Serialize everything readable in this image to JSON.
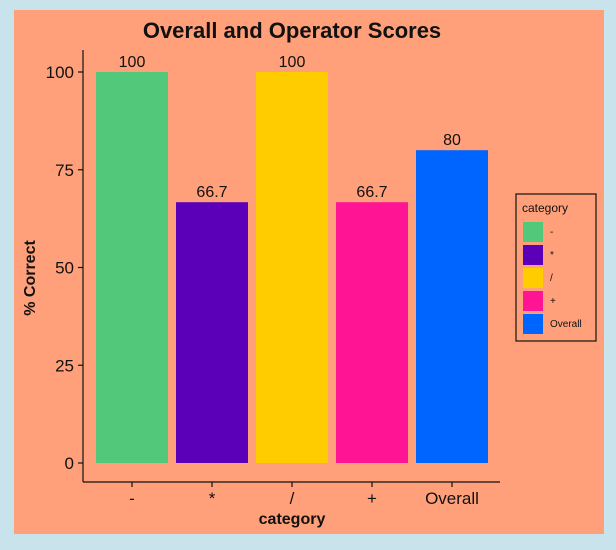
{
  "chart_data": {
    "type": "bar",
    "title": "Overall and Operator Scores",
    "xlabel": "category",
    "ylabel": "% Correct",
    "categories": [
      "-",
      "*",
      "/",
      "+",
      "Overall"
    ],
    "values": [
      100,
      66.7,
      100,
      66.7,
      80
    ],
    "data_labels": [
      "100",
      "66.7",
      "100",
      "66.7",
      "80"
    ],
    "colors": [
      "#52c97a",
      "#5b00b8",
      "#ffcc00",
      "#ff1493",
      "#0064ff"
    ],
    "ylim": [
      0,
      100
    ],
    "yticks": [
      0,
      25,
      50,
      75,
      100
    ],
    "grid": false,
    "legend": {
      "title": "category",
      "placement": "right",
      "entries": [
        "-",
        "*",
        "/",
        "+",
        "Overall"
      ]
    }
  },
  "colors": {
    "page_background": "#c9e3ec",
    "panel_background": "#ffa07a"
  }
}
